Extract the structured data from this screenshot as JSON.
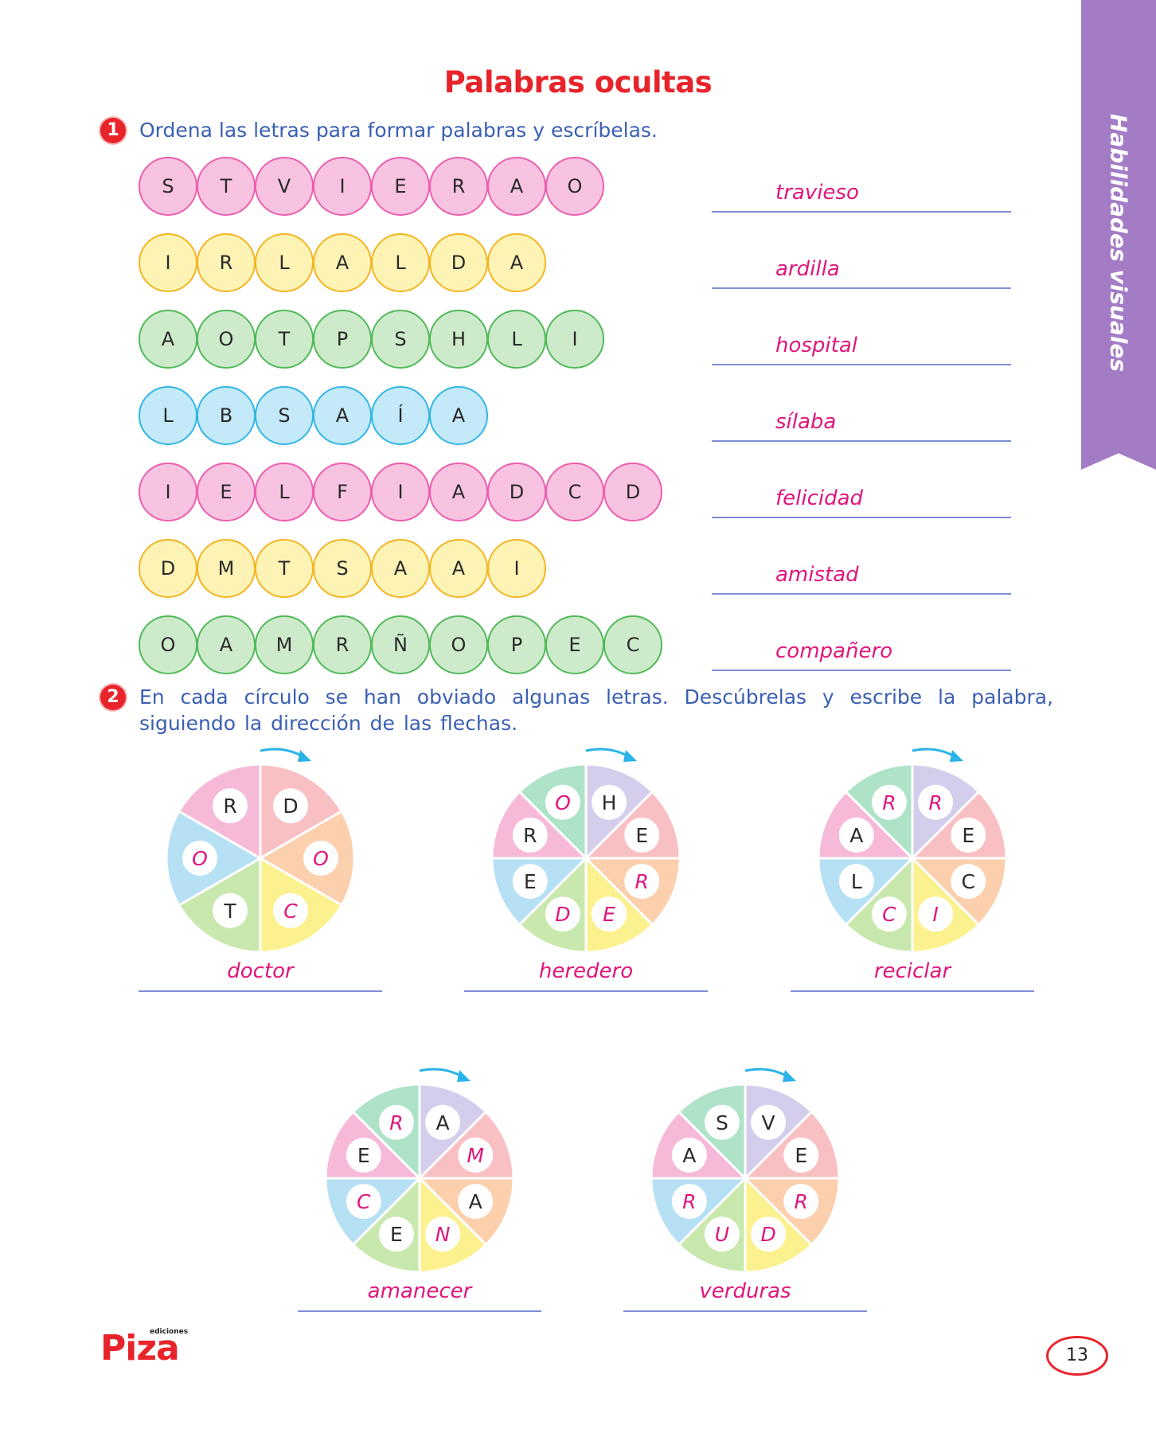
{
  "title": "Palabras ocultas",
  "side_tab": "Habilidades visuales",
  "exercise1": {
    "number": "1",
    "instruction": "Ordena las letras para formar palabras y escríbelas.",
    "rows": [
      {
        "color": "pink",
        "letters": [
          "S",
          "T",
          "V",
          "I",
          "E",
          "R",
          "A",
          "O"
        ],
        "answer": "travieso"
      },
      {
        "color": "yellow",
        "letters": [
          "I",
          "R",
          "L",
          "A",
          "L",
          "D",
          "A"
        ],
        "answer": "ardilla"
      },
      {
        "color": "green",
        "letters": [
          "A",
          "O",
          "T",
          "P",
          "S",
          "H",
          "L",
          "I"
        ],
        "answer": "hospital"
      },
      {
        "color": "blue",
        "letters": [
          "L",
          "B",
          "S",
          "A",
          "Í",
          "A"
        ],
        "answer": "sílaba"
      },
      {
        "color": "pink",
        "letters": [
          "I",
          "E",
          "L",
          "F",
          "I",
          "A",
          "D",
          "C",
          "D"
        ],
        "answer": "felicidad"
      },
      {
        "color": "yellow",
        "letters": [
          "D",
          "M",
          "T",
          "S",
          "A",
          "A",
          "I"
        ],
        "answer": "amistad"
      },
      {
        "color": "green",
        "letters": [
          "O",
          "A",
          "M",
          "R",
          "Ñ",
          "O",
          "P",
          "E",
          "C"
        ],
        "answer": "compañero"
      }
    ]
  },
  "exercise2": {
    "number": "2",
    "instruction": "En cada círculo se han obviado algunas letras. Descúbrelas y escribe la palabra, siguiendo la dirección de las flechas.",
    "wheels": [
      {
        "answer": "doctor",
        "segments": [
          {
            "letter": "D",
            "hidden": false,
            "color": "#f9c0c4"
          },
          {
            "letter": "O",
            "hidden": true,
            "color": "#fccfad"
          },
          {
            "letter": "C",
            "hidden": true,
            "color": "#fcf18f"
          },
          {
            "letter": "T",
            "hidden": false,
            "color": "#c8e8ad"
          },
          {
            "letter": "O",
            "hidden": true,
            "color": "#b6e0f4"
          },
          {
            "letter": "R",
            "hidden": false,
            "color": "#f6b9d8"
          }
        ]
      },
      {
        "answer": "heredero",
        "segments": [
          {
            "letter": "H",
            "hidden": false,
            "color": "#d5cdec"
          },
          {
            "letter": "E",
            "hidden": false,
            "color": "#f9c0c4"
          },
          {
            "letter": "R",
            "hidden": true,
            "color": "#fccfad"
          },
          {
            "letter": "E",
            "hidden": true,
            "color": "#fcf18f"
          },
          {
            "letter": "D",
            "hidden": true,
            "color": "#c8e8ad"
          },
          {
            "letter": "E",
            "hidden": false,
            "color": "#b6e0f4"
          },
          {
            "letter": "R",
            "hidden": false,
            "color": "#f6b9d8"
          },
          {
            "letter": "O",
            "hidden": true,
            "color": "#aee3c8"
          }
        ]
      },
      {
        "answer": "reciclar",
        "segments": [
          {
            "letter": "R",
            "hidden": true,
            "color": "#d5cdec"
          },
          {
            "letter": "E",
            "hidden": false,
            "color": "#f9c0c4"
          },
          {
            "letter": "C",
            "hidden": false,
            "color": "#fccfad"
          },
          {
            "letter": "I",
            "hidden": true,
            "color": "#fcf18f"
          },
          {
            "letter": "C",
            "hidden": true,
            "color": "#c8e8ad"
          },
          {
            "letter": "L",
            "hidden": false,
            "color": "#b6e0f4"
          },
          {
            "letter": "A",
            "hidden": false,
            "color": "#f6b9d8"
          },
          {
            "letter": "R",
            "hidden": true,
            "color": "#aee3c8"
          }
        ]
      },
      {
        "answer": "amanecer",
        "segments": [
          {
            "letter": "A",
            "hidden": false,
            "color": "#d5cdec"
          },
          {
            "letter": "M",
            "hidden": true,
            "color": "#f9c0c4"
          },
          {
            "letter": "A",
            "hidden": false,
            "color": "#fccfad"
          },
          {
            "letter": "N",
            "hidden": true,
            "color": "#fcf18f"
          },
          {
            "letter": "E",
            "hidden": false,
            "color": "#c8e8ad"
          },
          {
            "letter": "C",
            "hidden": true,
            "color": "#b6e0f4"
          },
          {
            "letter": "E",
            "hidden": false,
            "color": "#f6b9d8"
          },
          {
            "letter": "R",
            "hidden": true,
            "color": "#aee3c8"
          }
        ]
      },
      {
        "answer": "verduras",
        "segments": [
          {
            "letter": "V",
            "hidden": false,
            "color": "#d5cdec"
          },
          {
            "letter": "E",
            "hidden": false,
            "color": "#f9c0c4"
          },
          {
            "letter": "R",
            "hidden": true,
            "color": "#fccfad"
          },
          {
            "letter": "D",
            "hidden": true,
            "color": "#fcf18f"
          },
          {
            "letter": "U",
            "hidden": true,
            "color": "#c8e8ad"
          },
          {
            "letter": "R",
            "hidden": true,
            "color": "#b6e0f4"
          },
          {
            "letter": "A",
            "hidden": false,
            "color": "#f6b9d8"
          },
          {
            "letter": "S",
            "hidden": false,
            "color": "#aee3c8"
          }
        ]
      }
    ]
  },
  "footer": {
    "brand": "Piza",
    "brand_sub": "ediciones",
    "page_number": "13"
  },
  "colors": {
    "title": "#e8242b",
    "instruction": "#3a5fb3",
    "answer": "#e0157d",
    "shown_letter": "#2a2a2a",
    "arrow": "#29b3e8",
    "line": "#7f8fd8",
    "side_tab": "#a47cc6"
  }
}
